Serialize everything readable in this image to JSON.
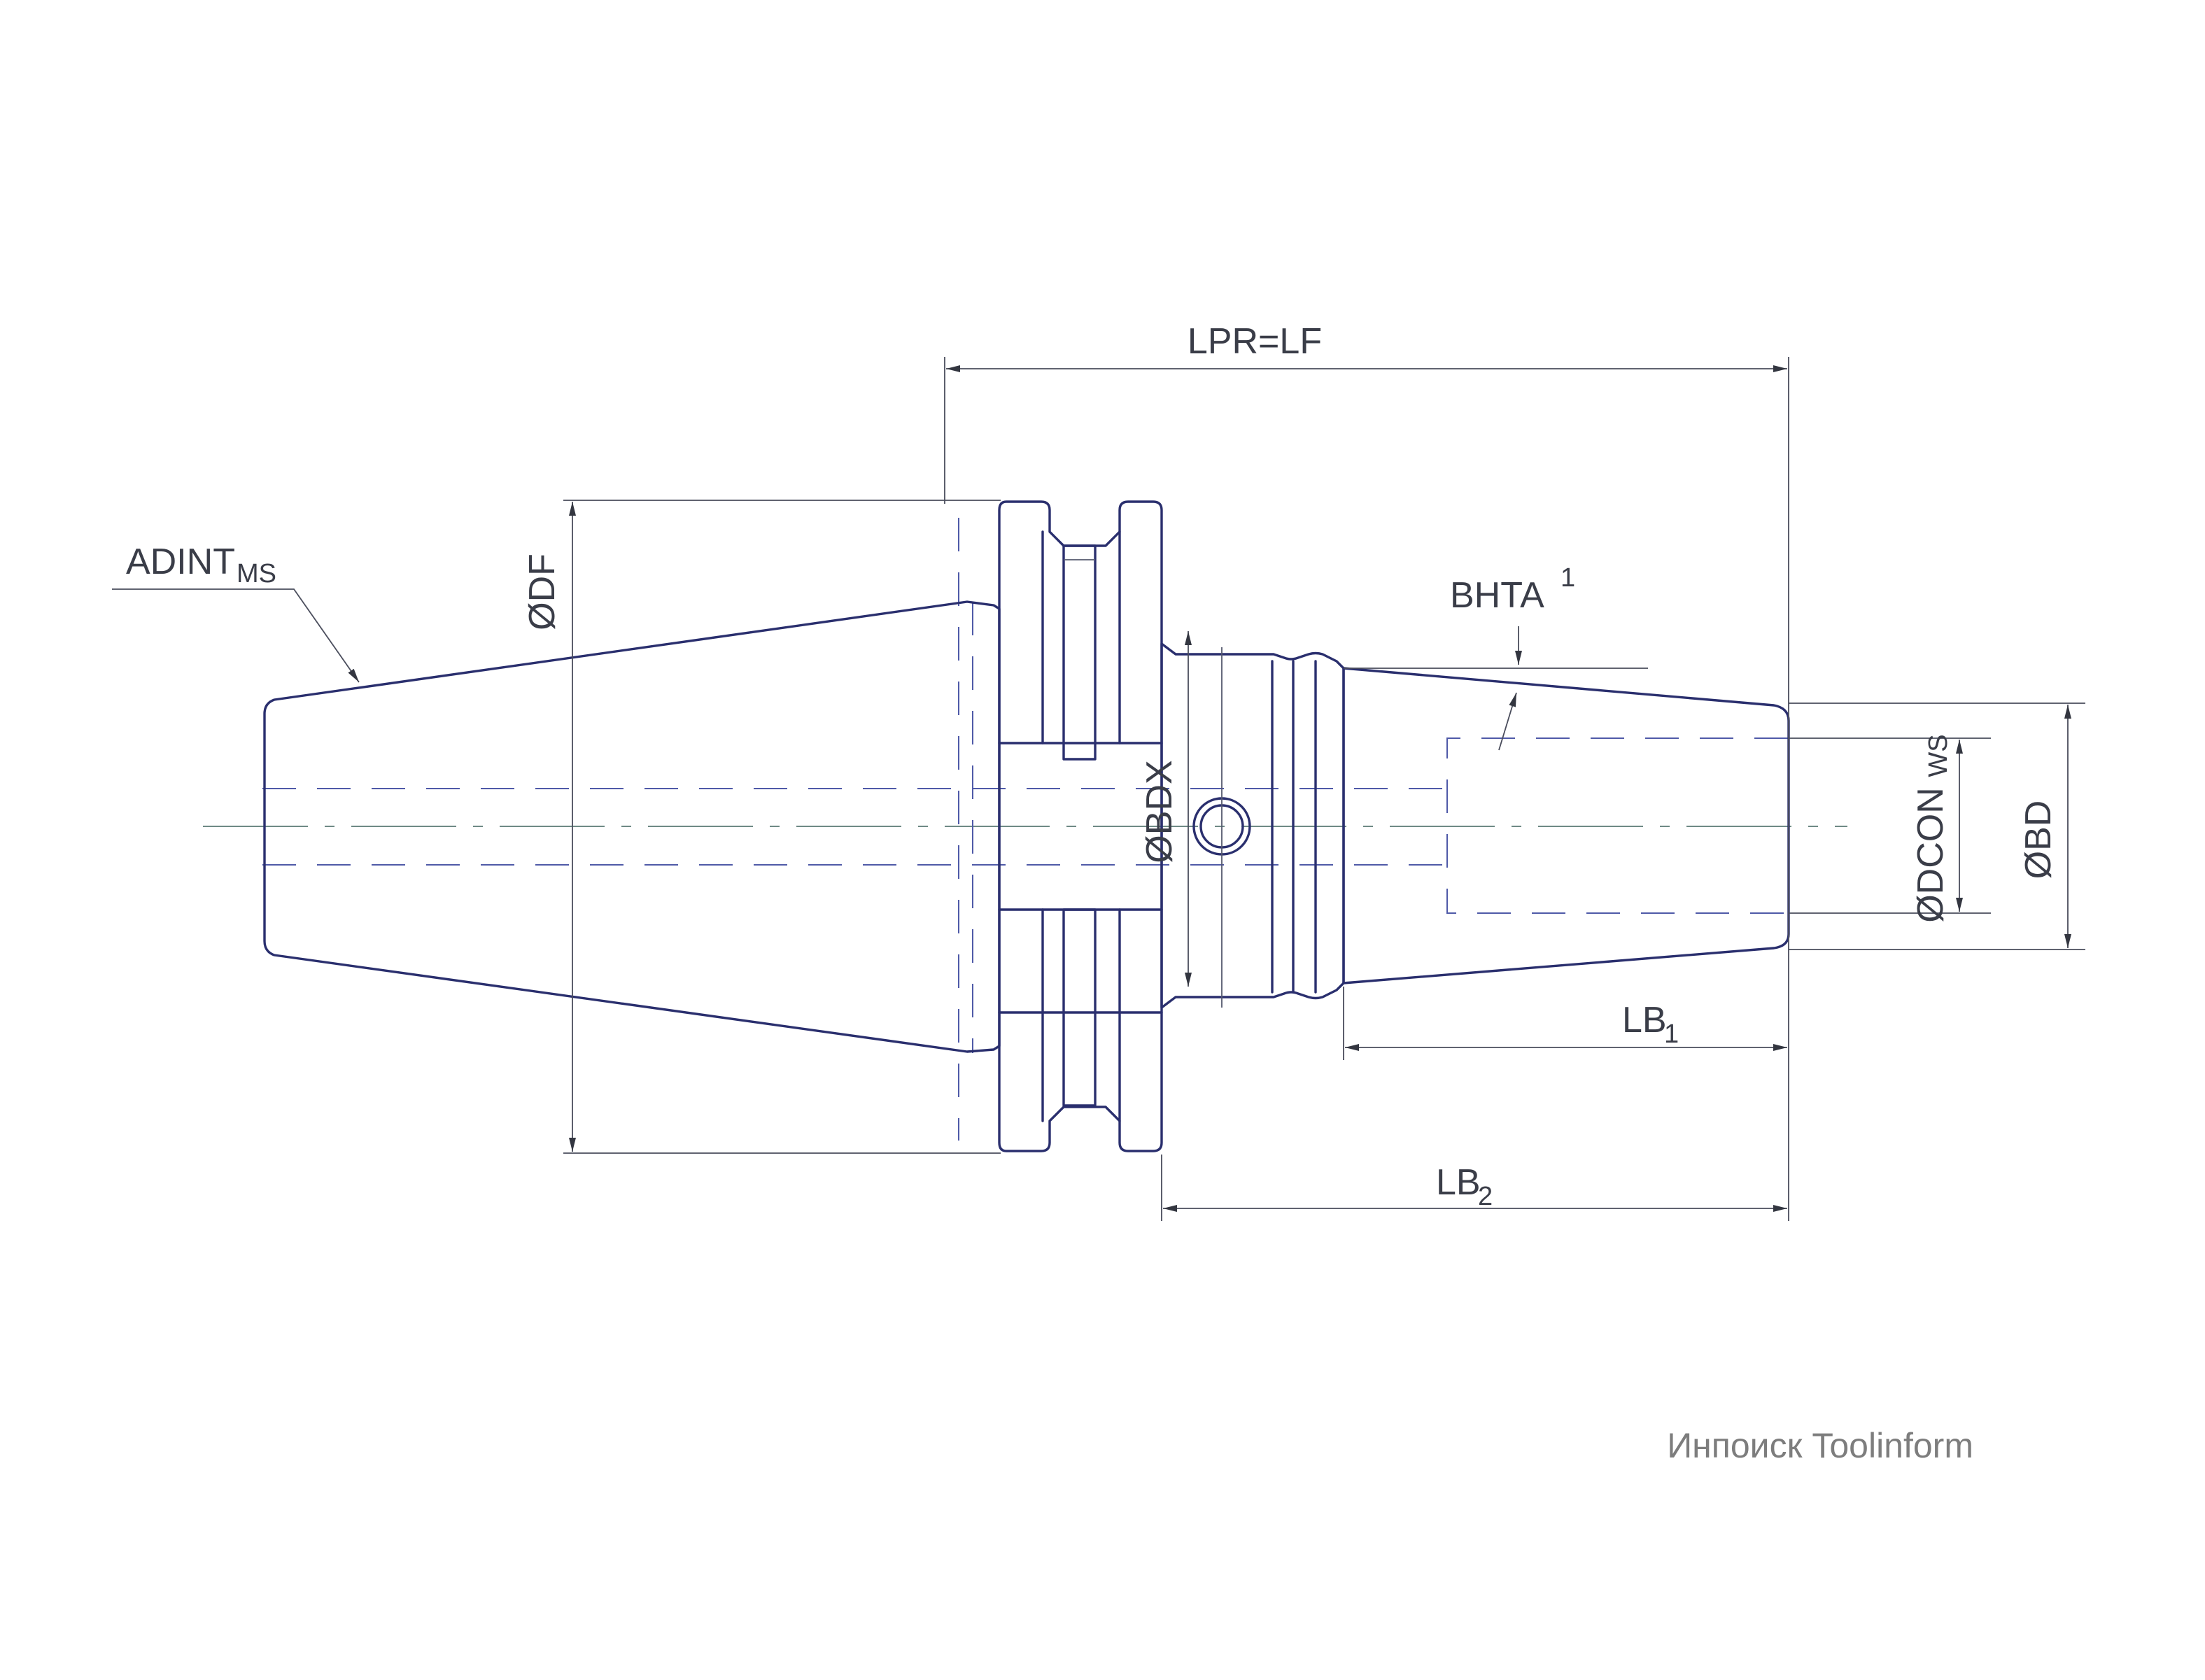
{
  "labels": {
    "lpr_lf": "LPR=LF",
    "adint_main": "ADINT",
    "adint_sub": "MS",
    "df": "ØDF",
    "bhta_main": "BHTA",
    "bhta_sup": "1",
    "bdx": "ØBDX",
    "dcon_main": "ØDCON",
    "dcon_sub": "WS",
    "bd": "ØBD",
    "lb1_main": "LB",
    "lb1_sub": "1",
    "lb2_main": "LB",
    "lb2_sub": "2"
  },
  "watermark": "Инпоиск Toolinform",
  "colors": {
    "outline": "#2a2f6e",
    "hidden_line": "#4f5aa8",
    "center_line": "#6f8a86",
    "dimension": "#4a4d5c",
    "watermark": "#7d7d7d"
  }
}
